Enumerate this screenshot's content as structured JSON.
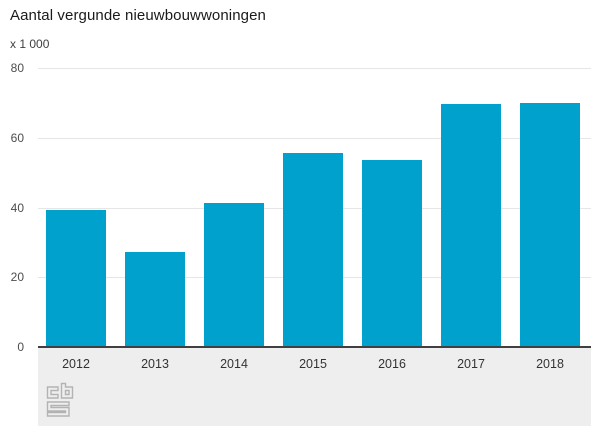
{
  "chart": {
    "title": "Aantal vergunde nieuwbouwwoningen",
    "unit_label": "x 1 000"
  },
  "chart_data": {
    "type": "bar",
    "title": "Aantal vergunde nieuwbouwwoningen",
    "ylabel": "x 1 000",
    "xlabel": "",
    "categories": [
      "2012",
      "2013",
      "2014",
      "2015",
      "2016",
      "2017",
      "2018"
    ],
    "values": [
      39.2,
      27.1,
      41.2,
      55.5,
      53.6,
      69.7,
      70.0
    ],
    "ylim": [
      0,
      80
    ],
    "yticks": [
      0,
      20,
      40,
      60,
      80
    ],
    "grid": true,
    "legend": false,
    "bar_color": "#00a1cd"
  },
  "colors": {
    "bar": "#00a1cd",
    "gridline": "#e6e6e6",
    "axis_line": "#404040",
    "footer_strip": "#eeeeee",
    "title_text": "#1a1a1a",
    "tick_text": "#4d4d4d",
    "logo": "#b3b3b3"
  },
  "icons": {
    "logo": "cbs-logo"
  }
}
